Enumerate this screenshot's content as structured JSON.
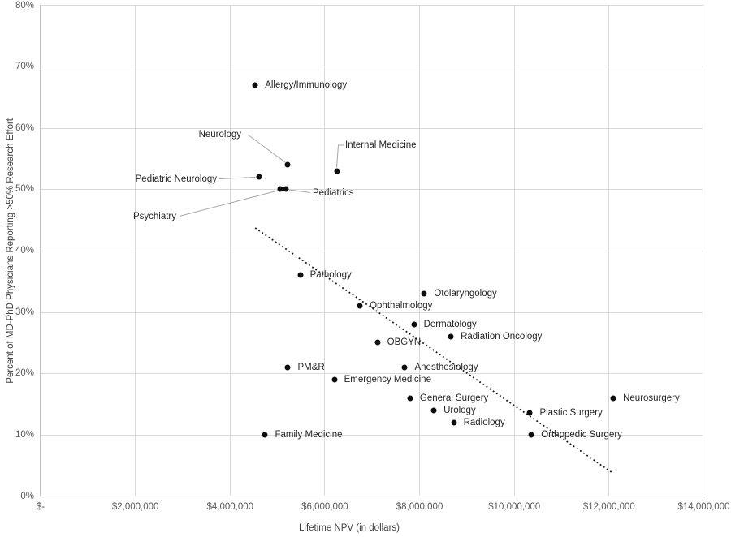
{
  "chart_data": {
    "type": "scatter",
    "title": "",
    "xlabel": "Lifetime NPV (in dollars)",
    "ylabel": "Percent of MD-PhD Physicians Reporting >50% Research Effort",
    "xlim": [
      0,
      14000000
    ],
    "ylim": [
      0,
      80
    ],
    "grid": true,
    "legend": "none",
    "x_tick_values": [
      0,
      2000000,
      4000000,
      6000000,
      8000000,
      10000000,
      12000000,
      14000000
    ],
    "x_tick_labels": [
      "$-",
      "$2,000,000",
      "$4,000,000",
      "$6,000,000",
      "$8,000,000",
      "$10,000,000",
      "$12,000,000",
      "$14,000,000"
    ],
    "y_tick_values": [
      0,
      10,
      20,
      30,
      40,
      50,
      60,
      70,
      80
    ],
    "y_tick_labels": [
      "0%",
      "10%",
      "20%",
      "30%",
      "40%",
      "50%",
      "60%",
      "70%",
      "80%"
    ],
    "points": [
      {
        "label": "Allergy/Immunology",
        "npv": 4530000,
        "pct": 67
      },
      {
        "label": "Neurology",
        "npv": 5220000,
        "pct": 54
      },
      {
        "label": "Internal Medicine",
        "npv": 6250000,
        "pct": 53
      },
      {
        "label": "Pediatric Neurology",
        "npv": 4610000,
        "pct": 52
      },
      {
        "label": "Psychiatry",
        "npv": 5060000,
        "pct": 50
      },
      {
        "label": "Pediatrics",
        "npv": 5170000,
        "pct": 50
      },
      {
        "label": "Pathology",
        "npv": 5480000,
        "pct": 36
      },
      {
        "label": "Otolaryngology",
        "npv": 8100000,
        "pct": 33
      },
      {
        "label": "Ophthalmology",
        "npv": 6740000,
        "pct": 31
      },
      {
        "label": "Dermatology",
        "npv": 7880000,
        "pct": 28
      },
      {
        "label": "Radiation Oncology",
        "npv": 8660000,
        "pct": 26
      },
      {
        "label": "OBGYN",
        "npv": 7110000,
        "pct": 25
      },
      {
        "label": "PM&R",
        "npv": 5220000,
        "pct": 21
      },
      {
        "label": "Anesthesiology",
        "npv": 7690000,
        "pct": 21
      },
      {
        "label": "Emergency Medicine",
        "npv": 6200000,
        "pct": 19
      },
      {
        "label": "General Surgery",
        "npv": 7800000,
        "pct": 16
      },
      {
        "label": "Neurosurgery",
        "npv": 12090000,
        "pct": 16
      },
      {
        "label": "Urology",
        "npv": 8300000,
        "pct": 14
      },
      {
        "label": "Plastic Surgery",
        "npv": 10330000,
        "pct": 13.5
      },
      {
        "label": "Radiology",
        "npv": 8720000,
        "pct": 12
      },
      {
        "label": "Orthopedic Surgery",
        "npv": 10360000,
        "pct": 10
      },
      {
        "label": "Family Medicine",
        "npv": 4740000,
        "pct": 10
      }
    ],
    "trendline": {
      "style": "dotted",
      "x1": 4530000,
      "y1": 43.7,
      "x2": 12050000,
      "y2": 3.9
    },
    "colors": {
      "point": "#0d0d0d",
      "trendline": "#1a1a1a",
      "gridline": "#d9d9d9",
      "axis_line": "#a6a6a6",
      "leader_line": "#a6a6a6",
      "tick_text": "#595959",
      "label_text": "#262626"
    }
  }
}
